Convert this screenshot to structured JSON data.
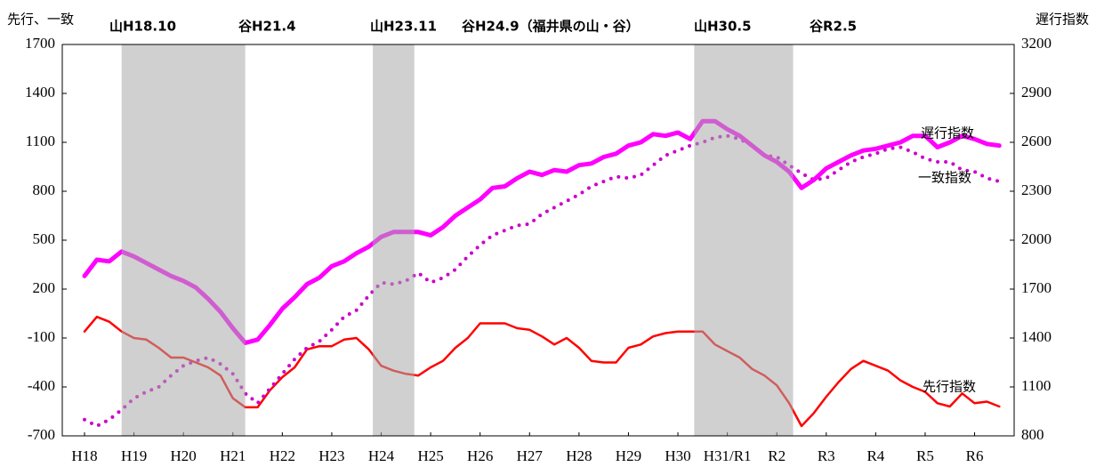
{
  "chart_data": {
    "type": "line",
    "y_label": "先行、一致",
    "y2_label": "遅行指数",
    "annotations": [
      "山H18.10",
      "谷H21.4",
      "山H23.11",
      "谷H24.9（福井県の山・谷）",
      "山H30.5",
      "谷R2.5"
    ],
    "shaded": [
      [
        2006.75,
        2009.25
      ],
      [
        2011.83,
        2012.67
      ],
      [
        2018.33,
        2020.33
      ]
    ],
    "xlim": [
      2005.55,
      2024.8
    ],
    "xticks": [
      {
        "value": 2006,
        "label": "H18"
      },
      {
        "value": 2007,
        "label": "H19"
      },
      {
        "value": 2008,
        "label": "H20"
      },
      {
        "value": 2009,
        "label": "H21"
      },
      {
        "value": 2010,
        "label": "H22"
      },
      {
        "value": 2011,
        "label": "H23"
      },
      {
        "value": 2012,
        "label": "H24"
      },
      {
        "value": 2013,
        "label": "H25"
      },
      {
        "value": 2014,
        "label": "H26"
      },
      {
        "value": 2015,
        "label": "H27"
      },
      {
        "value": 2016,
        "label": "H28"
      },
      {
        "value": 2017,
        "label": "H29"
      },
      {
        "value": 2018,
        "label": "H30"
      },
      {
        "value": 2019,
        "label": "H31/R1"
      },
      {
        "value": 2020,
        "label": "R2"
      },
      {
        "value": 2021,
        "label": "R3"
      },
      {
        "value": 2022,
        "label": "R4"
      },
      {
        "value": 2023,
        "label": "R5"
      },
      {
        "value": 2024,
        "label": "R6"
      }
    ],
    "ylim": [
      -700,
      1700
    ],
    "yticks": [
      -700,
      -400,
      -100,
      200,
      500,
      800,
      1100,
      1400,
      1700
    ],
    "y2lim": [
      800,
      3200
    ],
    "y2ticks": [
      800,
      1100,
      1400,
      1700,
      2000,
      2300,
      2600,
      2900,
      3200
    ],
    "x": [
      2006,
      2006.25,
      2006.5,
      2006.75,
      2007,
      2007.25,
      2007.5,
      2007.75,
      2008,
      2008.25,
      2008.5,
      2008.75,
      2009,
      2009.25,
      2009.5,
      2009.75,
      2010,
      2010.25,
      2010.5,
      2010.75,
      2011,
      2011.25,
      2011.5,
      2011.75,
      2012,
      2012.25,
      2012.5,
      2012.75,
      2013,
      2013.25,
      2013.5,
      2013.75,
      2014,
      2014.25,
      2014.5,
      2014.75,
      2015,
      2015.25,
      2015.5,
      2015.75,
      2016,
      2016.25,
      2016.5,
      2016.75,
      2017,
      2017.25,
      2017.5,
      2017.75,
      2018,
      2018.25,
      2018.5,
      2018.75,
      2019,
      2019.25,
      2019.5,
      2019.75,
      2020,
      2020.25,
      2020.5,
      2020.75,
      2021,
      2021.25,
      2021.5,
      2021.75,
      2022,
      2022.25,
      2022.5,
      2022.75,
      2023,
      2023.25,
      2023.5,
      2023.75,
      2024,
      2024.25,
      2024.5
    ],
    "series": [
      {
        "name": "先行指数",
        "color": "#ff0000",
        "style": "solid",
        "width": 2.5,
        "values": [
          -60,
          30,
          0,
          -60,
          -100,
          -110,
          -160,
          -220,
          -220,
          -250,
          -280,
          -330,
          -470,
          -525,
          -525,
          -420,
          -340,
          -280,
          -170,
          -150,
          -150,
          -110,
          -100,
          -170,
          -270,
          -300,
          -320,
          -330,
          -280,
          -240,
          -160,
          -100,
          -10,
          -10,
          -10,
          -40,
          -50,
          -90,
          -140,
          -100,
          -160,
          -240,
          -250,
          -250,
          -160,
          -140,
          -90,
          -70,
          -60,
          -60,
          -60,
          -140,
          -180,
          -220,
          -290,
          -330,
          -390,
          -500,
          -640,
          -560,
          -460,
          -370,
          -290,
          -240,
          -270,
          -300,
          -360,
          -400,
          -430,
          -500,
          -520,
          -440,
          -500,
          -490,
          -520
        ]
      },
      {
        "name": "一致指数",
        "color": "#cc00cc",
        "style": "dotted",
        "width": 4,
        "values": [
          -600,
          -640,
          -600,
          -540,
          -470,
          -430,
          -400,
          -330,
          -270,
          -240,
          -220,
          -260,
          -320,
          -440,
          -500,
          -410,
          -320,
          -230,
          -160,
          -120,
          -50,
          30,
          70,
          160,
          240,
          230,
          250,
          300,
          240,
          270,
          320,
          400,
          470,
          530,
          560,
          590,
          600,
          660,
          700,
          740,
          780,
          830,
          860,
          890,
          880,
          900,
          960,
          1020,
          1050,
          1080,
          1100,
          1130,
          1140,
          1120,
          1080,
          1020,
          1010,
          960,
          910,
          870,
          880,
          930,
          980,
          1010,
          1030,
          1060,
          1070,
          1040,
          1000,
          980,
          980,
          930,
          920,
          880,
          860
        ]
      },
      {
        "name": "遅行指数",
        "color": "#ff00ff",
        "style": "solid",
        "width": 5,
        "axis": "y2",
        "values": [
          1780,
          1880,
          1870,
          1930,
          1900,
          1860,
          1820,
          1780,
          1750,
          1710,
          1640,
          1560,
          1460,
          1370,
          1390,
          1480,
          1580,
          1650,
          1730,
          1770,
          1840,
          1870,
          1920,
          1960,
          2020,
          2050,
          2050,
          2050,
          2030,
          2080,
          2150,
          2200,
          2250,
          2320,
          2330,
          2380,
          2420,
          2400,
          2430,
          2420,
          2460,
          2470,
          2510,
          2530,
          2580,
          2600,
          2650,
          2640,
          2660,
          2620,
          2730,
          2730,
          2680,
          2640,
          2580,
          2520,
          2480,
          2420,
          2320,
          2370,
          2440,
          2480,
          2520,
          2550,
          2560,
          2580,
          2600,
          2640,
          2640,
          2570,
          2600,
          2640,
          2620,
          2590,
          2580
        ]
      }
    ]
  }
}
